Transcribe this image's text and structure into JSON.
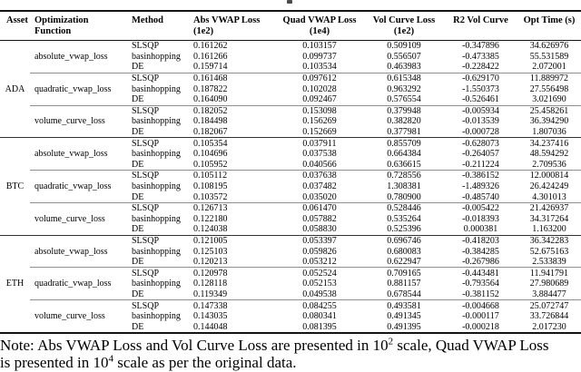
{
  "caption_fragment": "",
  "table": {
    "headers": [
      {
        "line1": "Asset",
        "line2": ""
      },
      {
        "line1": "Optimization",
        "line2": "Function"
      },
      {
        "line1": "Method",
        "line2": ""
      },
      {
        "line1": "Abs VWAP Loss",
        "line2": "(1e2)"
      },
      {
        "line1": "Quad VWAP Loss",
        "line2": "(1e4)"
      },
      {
        "line1": "Vol Curve Loss",
        "line2": "(1e2)"
      },
      {
        "line1": "R2 Vol Curve",
        "line2": ""
      },
      {
        "line1": "Opt Time (s)",
        "line2": ""
      }
    ],
    "assets": [
      {
        "asset": "ADA",
        "groups": [
          {
            "function": "absolute_vwap_loss",
            "rows": [
              {
                "method": "SLSQP",
                "abs_vwap": "0.161262",
                "quad_vwap": "0.103157",
                "vol_curve": "0.509109",
                "r2": "-0.347896",
                "opt_time": "34.626976"
              },
              {
                "method": "basinhopping",
                "abs_vwap": "0.161266",
                "quad_vwap": "0.099737",
                "vol_curve": "0.556507",
                "r2": "-0.473385",
                "opt_time": "55.531589"
              },
              {
                "method": "DE",
                "abs_vwap": "0.159714",
                "quad_vwap": "0.103534",
                "vol_curve": "0.463983",
                "r2": "-0.228422",
                "opt_time": "2.072001"
              }
            ]
          },
          {
            "function": "quadratic_vwap_loss",
            "rows": [
              {
                "method": "SLSQP",
                "abs_vwap": "0.161468",
                "quad_vwap": "0.097612",
                "vol_curve": "0.615348",
                "r2": "-0.629170",
                "opt_time": "11.889972"
              },
              {
                "method": "basinhopping",
                "abs_vwap": "0.187822",
                "quad_vwap": "0.102028",
                "vol_curve": "0.963292",
                "r2": "-1.550373",
                "opt_time": "27.556498"
              },
              {
                "method": "DE",
                "abs_vwap": "0.164090",
                "quad_vwap": "0.092467",
                "vol_curve": "0.576554",
                "r2": "-0.526461",
                "opt_time": "3.021690"
              }
            ]
          },
          {
            "function": "volume_curve_loss",
            "rows": [
              {
                "method": "SLSQP",
                "abs_vwap": "0.182052",
                "quad_vwap": "0.153098",
                "vol_curve": "0.379948",
                "r2": "-0.005934",
                "opt_time": "25.458261"
              },
              {
                "method": "basinhopping",
                "abs_vwap": "0.184498",
                "quad_vwap": "0.156269",
                "vol_curve": "0.382820",
                "r2": "-0.013539",
                "opt_time": "36.394290"
              },
              {
                "method": "DE",
                "abs_vwap": "0.182067",
                "quad_vwap": "0.152669",
                "vol_curve": "0.377981",
                "r2": "-0.000728",
                "opt_time": "1.807036"
              }
            ]
          }
        ]
      },
      {
        "asset": "BTC",
        "groups": [
          {
            "function": "absolute_vwap_loss",
            "rows": [
              {
                "method": "SLSQP",
                "abs_vwap": "0.105354",
                "quad_vwap": "0.037911",
                "vol_curve": "0.855709",
                "r2": "-0.628073",
                "opt_time": "34.237416"
              },
              {
                "method": "basinhopping",
                "abs_vwap": "0.104696",
                "quad_vwap": "0.037538",
                "vol_curve": "0.664384",
                "r2": "-0.264057",
                "opt_time": "48.594292"
              },
              {
                "method": "DE",
                "abs_vwap": "0.105952",
                "quad_vwap": "0.040566",
                "vol_curve": "0.636615",
                "r2": "-0.211224",
                "opt_time": "2.709536"
              }
            ]
          },
          {
            "function": "quadratic_vwap_loss",
            "rows": [
              {
                "method": "SLSQP",
                "abs_vwap": "0.105112",
                "quad_vwap": "0.037638",
                "vol_curve": "0.728556",
                "r2": "-0.386152",
                "opt_time": "12.000814"
              },
              {
                "method": "basinhopping",
                "abs_vwap": "0.108195",
                "quad_vwap": "0.037482",
                "vol_curve": "1.308381",
                "r2": "-1.489326",
                "opt_time": "26.424249"
              },
              {
                "method": "DE",
                "abs_vwap": "0.103572",
                "quad_vwap": "0.035020",
                "vol_curve": "0.780900",
                "r2": "-0.485740",
                "opt_time": "4.301013"
              }
            ]
          },
          {
            "function": "volume_curve_loss",
            "rows": [
              {
                "method": "SLSQP",
                "abs_vwap": "0.126713",
                "quad_vwap": "0.061470",
                "vol_curve": "0.528446",
                "r2": "-0.005422",
                "opt_time": "21.426937"
              },
              {
                "method": "basinhopping",
                "abs_vwap": "0.122180",
                "quad_vwap": "0.057882",
                "vol_curve": "0.535264",
                "r2": "-0.018393",
                "opt_time": "34.317264"
              },
              {
                "method": "DE",
                "abs_vwap": "0.124038",
                "quad_vwap": "0.058830",
                "vol_curve": "0.525396",
                "r2": "0.000381",
                "opt_time": "1.163200"
              }
            ]
          }
        ]
      },
      {
        "asset": "ETH",
        "groups": [
          {
            "function": "absolute_vwap_loss",
            "rows": [
              {
                "method": "SLSQP",
                "abs_vwap": "0.121005",
                "quad_vwap": "0.053397",
                "vol_curve": "0.696746",
                "r2": "-0.418203",
                "opt_time": "36.342283"
              },
              {
                "method": "basinhopping",
                "abs_vwap": "0.125103",
                "quad_vwap": "0.059826",
                "vol_curve": "0.680083",
                "r2": "-0.384285",
                "opt_time": "52.675163"
              },
              {
                "method": "DE",
                "abs_vwap": "0.120213",
                "quad_vwap": "0.053212",
                "vol_curve": "0.622947",
                "r2": "-0.267986",
                "opt_time": "2.533839"
              }
            ]
          },
          {
            "function": "quadratic_vwap_loss",
            "rows": [
              {
                "method": "SLSQP",
                "abs_vwap": "0.120978",
                "quad_vwap": "0.052524",
                "vol_curve": "0.709165",
                "r2": "-0.443481",
                "opt_time": "11.941791"
              },
              {
                "method": "basinhopping",
                "abs_vwap": "0.128118",
                "quad_vwap": "0.052153",
                "vol_curve": "0.881157",
                "r2": "-0.793564",
                "opt_time": "27.980689"
              },
              {
                "method": "DE",
                "abs_vwap": "0.119349",
                "quad_vwap": "0.049538",
                "vol_curve": "0.678544",
                "r2": "-0.381152",
                "opt_time": "3.884477"
              }
            ]
          },
          {
            "function": "volume_curve_loss",
            "rows": [
              {
                "method": "SLSQP",
                "abs_vwap": "0.147338",
                "quad_vwap": "0.084255",
                "vol_curve": "0.493581",
                "r2": "-0.004668",
                "opt_time": "25.072747"
              },
              {
                "method": "basinhopping",
                "abs_vwap": "0.143035",
                "quad_vwap": "0.080341",
                "vol_curve": "0.491345",
                "r2": "-0.000117",
                "opt_time": "33.726844"
              },
              {
                "method": "DE",
                "abs_vwap": "0.144048",
                "quad_vwap": "0.081395",
                "vol_curve": "0.491395",
                "r2": "-0.000218",
                "opt_time": "2.017230"
              }
            ]
          }
        ]
      }
    ]
  },
  "note": {
    "line1_pre": "Note: Abs VWAP Loss and Vol Curve Loss are presented in 10",
    "line1_sup": "2",
    "line1_post": " scale, Quad VWAP Loss",
    "line2_pre": "is presented in 10",
    "line2_sup": "4",
    "line2_post": " scale as per the original data."
  }
}
